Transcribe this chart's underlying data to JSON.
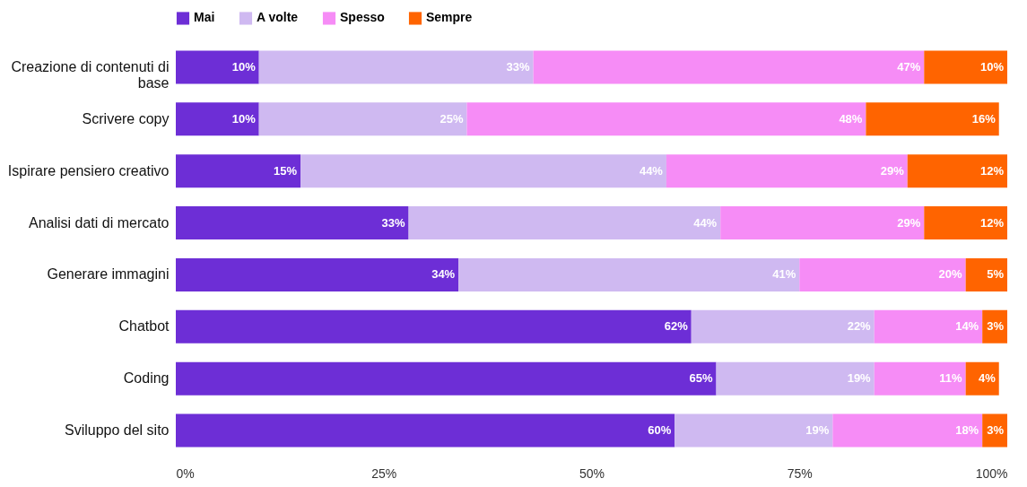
{
  "chart_data": {
    "type": "bar",
    "orientation": "horizontal",
    "stacked": true,
    "categories": [
      "Creazione di contenuti di base",
      "Scrivere copy",
      "Ispirare pensiero creativo",
      "Analisi dati di mercato",
      "Generare immagini",
      "Chatbot",
      "Coding",
      "Sviluppo del sito"
    ],
    "series": [
      {
        "name": "Mai",
        "color": "#6d2ed6",
        "values": [
          10,
          10,
          15,
          28,
          34,
          62,
          65,
          60
        ],
        "value_labels": [
          "10%",
          "10%",
          "15%",
          null,
          "34%",
          "62%",
          "65%",
          "60%"
        ]
      },
      {
        "name": "A volte",
        "color": "#cfb9f1",
        "values": [
          33,
          25,
          44,
          37.5,
          41,
          22,
          19,
          19
        ],
        "value_labels": [
          "33%",
          "25%",
          "44%",
          null,
          "41%",
          "22%",
          "19%",
          "19%"
        ]
      },
      {
        "name": "Spesso",
        "color": "#f68cf6",
        "values": [
          47,
          48,
          29,
          24.5,
          20,
          13,
          11,
          18
        ],
        "value_labels": [
          "47%",
          "48%",
          "29%",
          null,
          "20%",
          null,
          "11%",
          "18%"
        ]
      },
      {
        "name": "Sempre",
        "color": "#ff6400",
        "values": [
          10,
          16,
          12,
          10,
          5,
          3,
          4,
          3
        ],
        "value_labels": [
          "10%",
          "16%",
          "12%",
          null,
          "5%",
          "3%",
          "4%",
          "3%"
        ]
      }
    ],
    "xlim": [
      0,
      100
    ],
    "xticks": [
      {
        "value": 0,
        "label": "0%"
      },
      {
        "value": 25,
        "label": "25%"
      },
      {
        "value": 50,
        "label": "50%"
      },
      {
        "value": 75,
        "label": "75%"
      },
      {
        "value": 100,
        "label": "100%"
      }
    ],
    "annotations": [
      {
        "text": "33%",
        "x": 28,
        "y": "Analisi dati di mercato"
      },
      {
        "text": "44%",
        "x": 65.5,
        "y": "Analisi dati di mercato"
      },
      {
        "text": "29%",
        "x": 90,
        "y": "Analisi dati di mercato"
      },
      {
        "text": "12%",
        "x": 100,
        "y": "Analisi dati di mercato"
      },
      {
        "text": "14%",
        "x": 97,
        "y": "Chatbot"
      }
    ],
    "grid": false,
    "legend": "top"
  }
}
